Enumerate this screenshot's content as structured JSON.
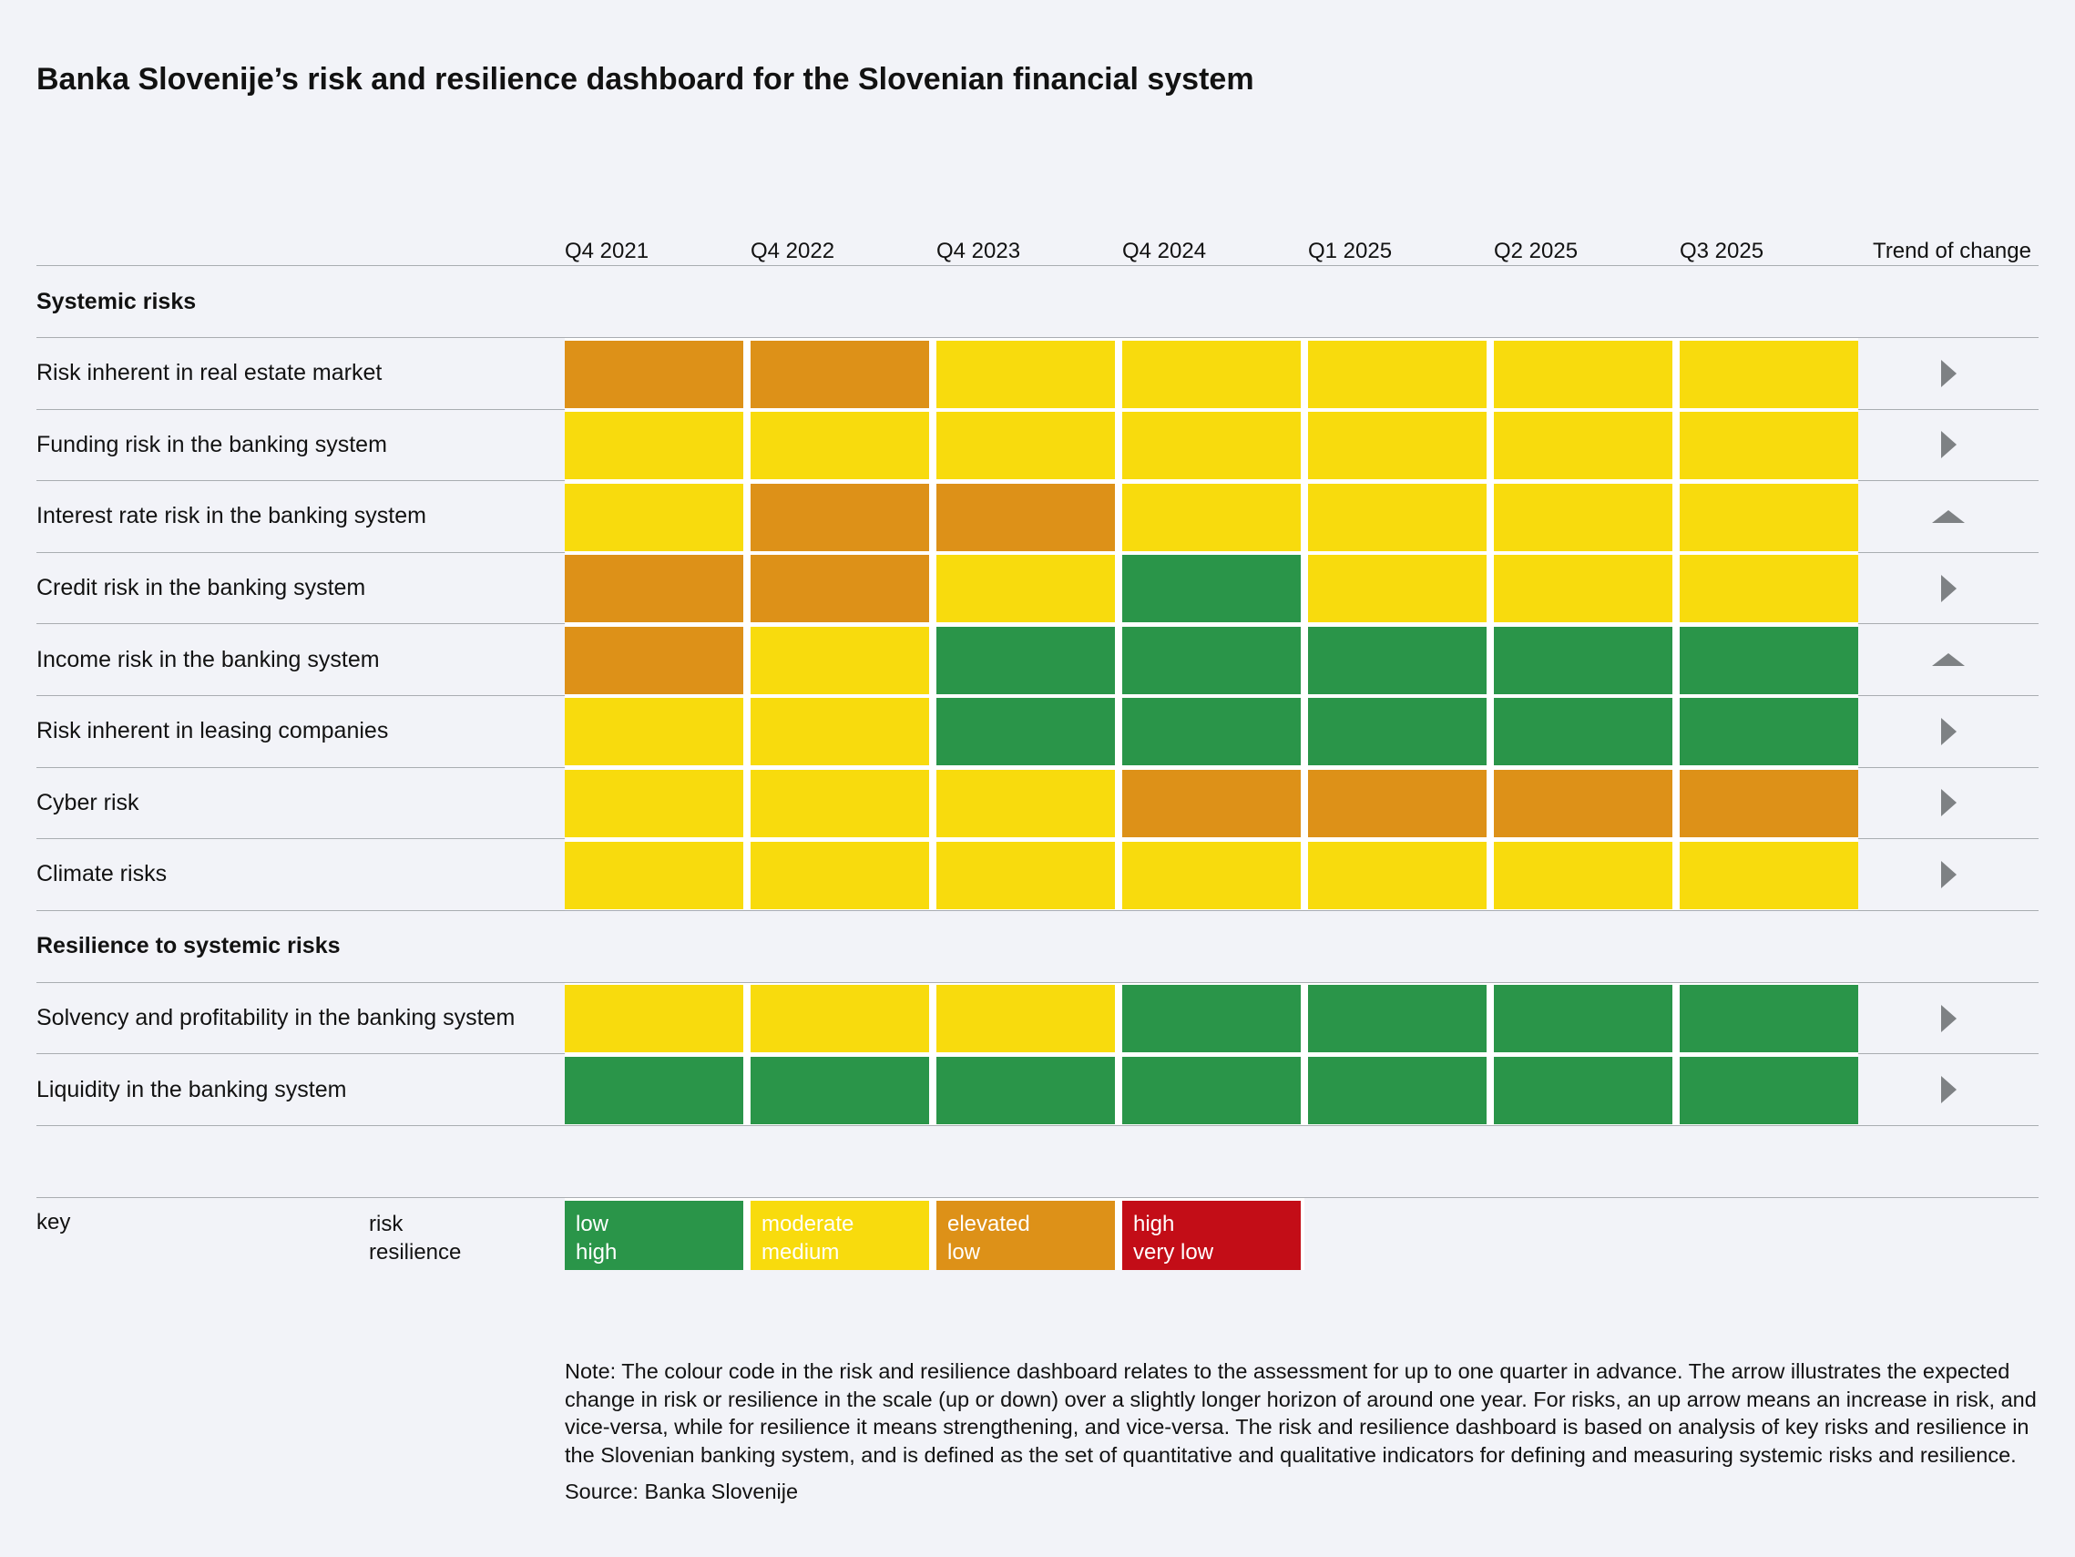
{
  "chart_data": {
    "type": "heatmap",
    "title": "Banka Slovenije’s risk and resilience dashboard for the Slovenian financial system",
    "x_labels": [
      "Q4 2021",
      "Q4 2022",
      "Q4 2023",
      "Q4 2024",
      "Q1 2025",
      "Q2 2025",
      "Q3 2025"
    ],
    "trend_column_label": "Trend of change",
    "legend_position": "bottom",
    "level_colors": {
      "risk": {
        "low": "#2A9549",
        "moderate": "#F8DB0D",
        "elevated": "#DD9118",
        "high": "#C30D17"
      },
      "resilience": {
        "high": "#2A9549",
        "medium": "#F8DB0D",
        "low": "#DD9118",
        "very low": "#C30D17"
      }
    },
    "trend_icons": {
      "unchanged": "right-arrow",
      "up": "up-arrow"
    },
    "sections": [
      {
        "name": "Systemic risks",
        "scale": "risk",
        "rows": [
          {
            "label": "Risk inherent in real estate market",
            "values": [
              "elevated",
              "elevated",
              "moderate",
              "moderate",
              "moderate",
              "moderate",
              "moderate"
            ],
            "trend": "unchanged"
          },
          {
            "label": "Funding risk in the banking system",
            "values": [
              "moderate",
              "moderate",
              "moderate",
              "moderate",
              "moderate",
              "moderate",
              "moderate"
            ],
            "trend": "unchanged"
          },
          {
            "label": "Interest rate risk in the banking system",
            "values": [
              "moderate",
              "elevated",
              "elevated",
              "moderate",
              "moderate",
              "moderate",
              "moderate"
            ],
            "trend": "up"
          },
          {
            "label": "Credit risk in the banking system",
            "values": [
              "elevated",
              "elevated",
              "moderate",
              "low",
              "moderate",
              "moderate",
              "moderate"
            ],
            "trend": "unchanged"
          },
          {
            "label": "Income risk in the banking system",
            "values": [
              "elevated",
              "moderate",
              "low",
              "low",
              "low",
              "low",
              "low"
            ],
            "trend": "up"
          },
          {
            "label": "Risk inherent in leasing companies",
            "values": [
              "moderate",
              "moderate",
              "low",
              "low",
              "low",
              "low",
              "low"
            ],
            "trend": "unchanged"
          },
          {
            "label": "Cyber risk",
            "values": [
              "moderate",
              "moderate",
              "moderate",
              "elevated",
              "elevated",
              "elevated",
              "elevated"
            ],
            "trend": "unchanged"
          },
          {
            "label": "Climate risks",
            "values": [
              "moderate",
              "moderate",
              "moderate",
              "moderate",
              "moderate",
              "moderate",
              "moderate"
            ],
            "trend": "unchanged"
          }
        ]
      },
      {
        "name": "Resilience to systemic risks",
        "scale": "resilience",
        "rows": [
          {
            "label": "Solvency and profitability in the banking system",
            "values": [
              "medium",
              "medium",
              "medium",
              "high",
              "high",
              "high",
              "high"
            ],
            "trend": "unchanged"
          },
          {
            "label": "Liquidity in the banking system",
            "values": [
              "high",
              "high",
              "high",
              "high",
              "high",
              "high",
              "high"
            ],
            "trend": "unchanged"
          }
        ]
      }
    ],
    "legend": {
      "key_label": "key",
      "row_label_lines": [
        "risk",
        "resilience"
      ],
      "items": [
        {
          "risk": "low",
          "resilience": "high",
          "color": "#2A9549"
        },
        {
          "risk": "moderate",
          "resilience": "medium",
          "color": "#F8DB0D"
        },
        {
          "risk": "elevated",
          "resilience": "low",
          "color": "#DD9118"
        },
        {
          "risk": "high",
          "resilience": "very low",
          "color": "#C30D17"
        }
      ]
    },
    "note": "Note: The colour code in the risk and resilience dashboard relates to the assessment for up to one quarter in advance. The arrow illustrates the expected change in risk or resilience in the scale (up or down) over a slightly longer horizon of around one year. For risks, an up arrow means an increase in risk, and vice-versa, while for resilience it means strengthening, and vice-versa. The risk and resilience dashboard is based on analysis of key risks and resilience in the Slovenian banking system, and is defined as the set of quantitative and qualitative indicators for defining and measuring systemic risks and resilience.",
    "source": "Source: Banka Slovenije",
    "background_color": "#F2F3F8"
  }
}
